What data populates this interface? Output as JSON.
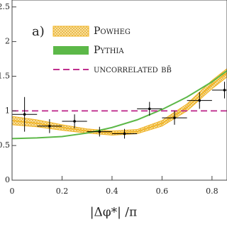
{
  "chart_data": {
    "type": "line",
    "panel_label": "a)",
    "x_label": "|Δφ*| /π",
    "xlim": [
      0,
      0.86
    ],
    "ylim": [
      0,
      2.6
    ],
    "xticks": [
      0,
      0.2,
      0.4,
      0.6,
      0.8
    ],
    "yticks": [
      0,
      0.5,
      1,
      1.5,
      2,
      2.5
    ],
    "x": [
      0,
      0.1,
      0.2,
      0.3,
      0.4,
      0.5,
      0.6,
      0.7,
      0.8,
      0.86
    ],
    "series": [
      {
        "name": "Powheg",
        "color": "#f2b21c",
        "band": true,
        "values": [
          0.86,
          0.82,
          0.76,
          0.71,
          0.68,
          0.7,
          0.82,
          1.05,
          1.38,
          1.55
        ],
        "lower": [
          0.8,
          0.77,
          0.72,
          0.68,
          0.65,
          0.67,
          0.78,
          1.0,
          1.32,
          1.49
        ],
        "upper": [
          0.92,
          0.87,
          0.8,
          0.74,
          0.71,
          0.73,
          0.86,
          1.1,
          1.44,
          1.61
        ]
      },
      {
        "name": "Pythia",
        "color": "#5cb848",
        "values": [
          0.6,
          0.61,
          0.63,
          0.68,
          0.76,
          0.87,
          1.02,
          1.2,
          1.42,
          1.58
        ]
      },
      {
        "name": "uncorrelated bb̄",
        "color": "#c0308f",
        "dashed": true,
        "level": 1
      }
    ],
    "measurement": {
      "color": "#000000",
      "x": [
        0.05,
        0.15,
        0.25,
        0.35,
        0.45,
        0.55,
        0.65,
        0.75,
        0.85
      ],
      "values": [
        0.95,
        0.78,
        0.85,
        0.7,
        0.67,
        1.03,
        0.9,
        1.15,
        1.3
      ],
      "yerr": [
        0.25,
        0.1,
        0.1,
        0.07,
        0.07,
        0.1,
        0.1,
        0.12,
        0.12
      ],
      "xerr": [
        0.05,
        0.05,
        0.05,
        0.05,
        0.05,
        0.05,
        0.05,
        0.05,
        0.05
      ]
    }
  }
}
